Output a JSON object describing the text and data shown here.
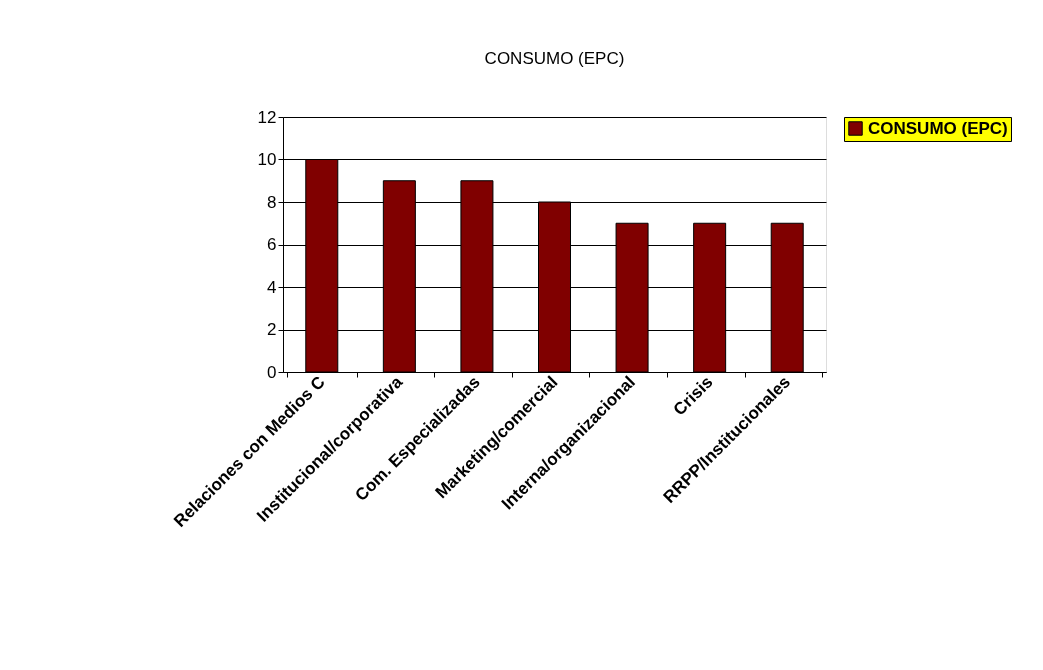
{
  "chart_data": {
    "type": "bar",
    "title": "CONSUMO (EPC)",
    "categories": [
      "Relaciones con Medios C",
      "Institucional/corporativa",
      "Com. Especializadas",
      "Marketing/comercial",
      "Interna/organizacional",
      "Crisis",
      "RRPP/Institucionales"
    ],
    "series": [
      {
        "name": "CONSUMO (EPC)",
        "color": "#800000",
        "values": [
          10,
          9,
          9,
          8,
          7,
          7,
          7
        ]
      }
    ],
    "ylim": [
      0,
      12
    ],
    "yticks": [
      0,
      2,
      4,
      6,
      8,
      10,
      12
    ],
    "grid": "y",
    "legend": "right"
  }
}
